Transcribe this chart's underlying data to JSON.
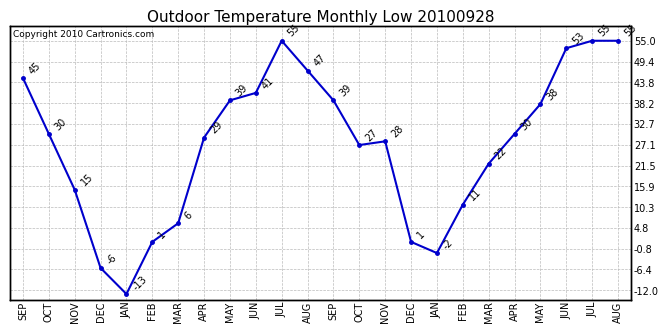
{
  "title": "Outdoor Temperature Monthly Low 20100928",
  "copyright_text": "Copyright 2010 Cartronics.com",
  "categories": [
    "SEP",
    "OCT",
    "NOV",
    "DEC",
    "JAN",
    "FEB",
    "MAR",
    "APR",
    "MAY",
    "JUN",
    "JUL",
    "AUG",
    "SEP",
    "OCT",
    "NOV",
    "DEC",
    "JAN",
    "FEB",
    "MAR",
    "APR",
    "MAY",
    "JUN",
    "JUL",
    "AUG"
  ],
  "values": [
    45,
    30,
    15,
    -6,
    -13,
    1,
    6,
    29,
    39,
    41,
    55,
    47,
    39,
    27,
    28,
    1,
    -2,
    11,
    22,
    30,
    38,
    53,
    55,
    55
  ],
  "line_color": "#0000CC",
  "marker_color": "#0000CC",
  "bg_color": "#FFFFFF",
  "grid_color": "#BBBBBB",
  "title_fontsize": 11,
  "tick_fontsize": 7,
  "yticks_right": [
    55.0,
    49.4,
    43.8,
    38.2,
    32.7,
    27.1,
    21.5,
    15.9,
    10.3,
    4.8,
    -0.8,
    -6.4,
    -12.0
  ],
  "ylim": [
    -14.5,
    59
  ],
  "annotation_fontsize": 7,
  "annotation_rotation": 45
}
